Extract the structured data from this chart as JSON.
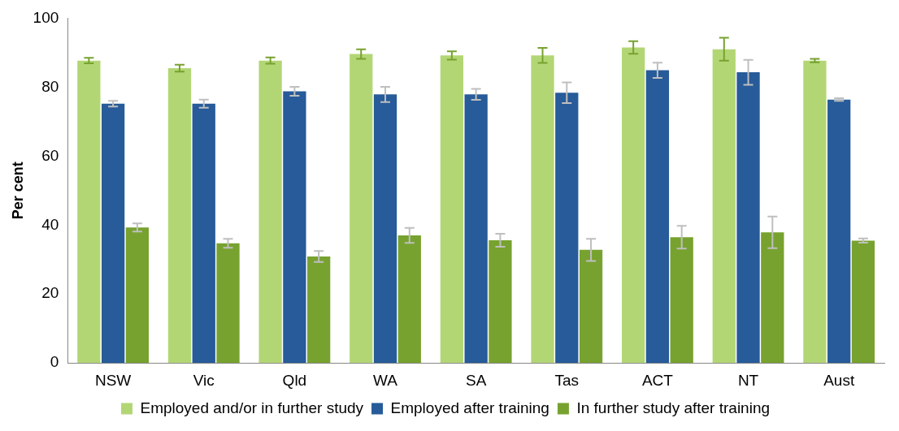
{
  "chart_data": {
    "type": "bar",
    "ylabel": "Per cent",
    "categories": [
      "NSW",
      "Vic",
      "Qld",
      "WA",
      "SA",
      "Tas",
      "ACT",
      "NT",
      "Aust"
    ],
    "series": [
      {
        "name": "Employed and/or in further study",
        "color": "#b3d675",
        "values": [
          87.7,
          85.5,
          87.7,
          89.6,
          89.2,
          89.2,
          91.5,
          91,
          87.7
        ],
        "errors": [
          0.8,
          1,
          0.9,
          1.4,
          1.2,
          2.2,
          1.8,
          3.3,
          0.5
        ]
      },
      {
        "name": "Employed after training",
        "color": "#275b99",
        "values": [
          75.2,
          75.2,
          78.8,
          77.9,
          77.9,
          78.4,
          84.9,
          84.3,
          76.4
        ],
        "errors": [
          0.8,
          1.2,
          1.3,
          2.2,
          1.6,
          3,
          2.2,
          3.6,
          0.4
        ]
      },
      {
        "name": "In further study after training",
        "color": "#77a22f",
        "values": [
          39.3,
          34.7,
          30.9,
          37,
          35.6,
          32.8,
          36.5,
          37.9,
          35.5
        ],
        "errors": [
          1.2,
          1.3,
          1.6,
          2.2,
          1.9,
          3.2,
          3.3,
          4.6,
          0.6
        ]
      }
    ],
    "ylim": [
      0,
      100
    ],
    "yticks": [
      0,
      20,
      40,
      60,
      80,
      100
    ],
    "grid": false,
    "legend": "bottom"
  }
}
